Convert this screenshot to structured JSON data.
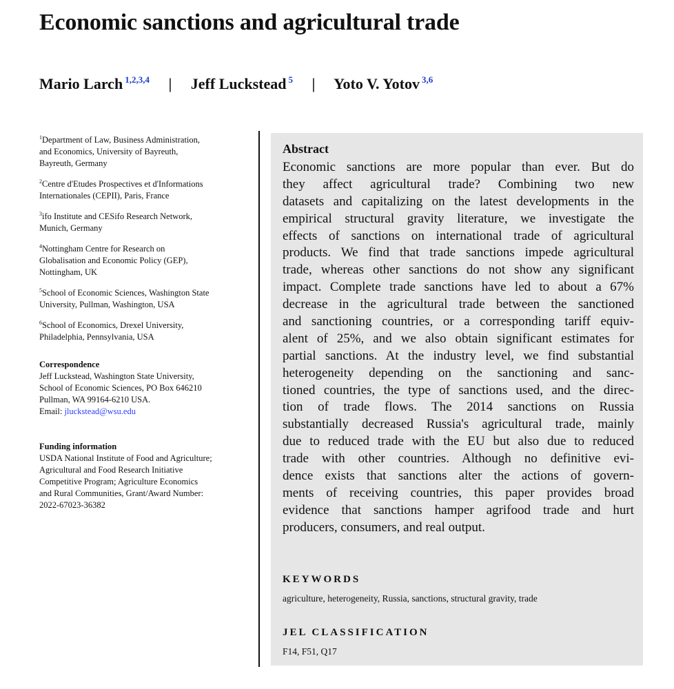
{
  "title": "Economic sanctions and agricultural trade",
  "authors": [
    {
      "name": "Mario Larch",
      "sup": "1,2,3,4"
    },
    {
      "name": "Jeff Luckstead",
      "sup": "5"
    },
    {
      "name": "Yoto V. Yotov",
      "sup": "3,6"
    }
  ],
  "separator": "|",
  "affiliations": [
    {
      "num": "1",
      "lines": [
        "Department of Law, Business Administration,",
        "and Economics, University of Bayreuth,",
        "Bayreuth, Germany"
      ]
    },
    {
      "num": "2",
      "lines": [
        "Centre d'Etudes Prospectives et d'Informations",
        "Internationales (CEPII), Paris, France"
      ]
    },
    {
      "num": "3",
      "lines": [
        "ifo Institute and CESifo Research Network,",
        "Munich, Germany"
      ]
    },
    {
      "num": "4",
      "lines": [
        "Nottingham Centre for Research on",
        "Globalisation and Economic Policy (GEP),",
        "Nottingham, UK"
      ]
    },
    {
      "num": "5",
      "lines": [
        "School of Economic Sciences, Washington State",
        "University, Pullman, Washington, USA"
      ]
    },
    {
      "num": "6",
      "lines": [
        "School of Economics, Drexel University,",
        "Philadelphia, Pennsylvania, USA"
      ]
    }
  ],
  "correspondence": {
    "heading": "Correspondence",
    "lines": [
      "Jeff Luckstead, Washington State University,",
      "School of Economic Sciences, PO Box 646210",
      "Pullman, WA 99164-6210 USA."
    ],
    "email_label": "Email:",
    "email": "jluckstead@wsu.edu"
  },
  "funding": {
    "heading": "Funding information",
    "lines": [
      "USDA National Institute of Food and Agriculture;",
      "Agricultural and Food Research Initiative",
      "Competitive Program; Agriculture Economics",
      "and Rural Communities, Grant/Award Number:",
      "2022-67023-36382"
    ]
  },
  "abstract": {
    "heading": "Abstract",
    "lines": [
      "Economic sanctions are more popular than ever. But do",
      "they affect agricultural trade? Combining two new",
      "datasets and capitalizing on the latest developments in the",
      "empirical structural gravity literature, we investigate the",
      "effects of sanctions on international trade of agricultural",
      "products. We find that trade sanctions impede agricultural",
      "trade, whereas other sanctions do not show any significant",
      "impact. Complete trade sanctions have led to about a 67%",
      "decrease in the agricultural trade between the sanctioned",
      "and sanctioning countries, or a corresponding tariff equiv-",
      "alent of 25%, and we also obtain significant estimates for",
      "partial sanctions. At the industry level, we find substantial",
      "heterogeneity depending on the sanctioning and sanc-",
      "tioned countries, the type of sanctions used, and the direc-",
      "tion of trade flows. The 2014 sanctions on Russia",
      "substantially decreased Russia's agricultural trade, mainly",
      "due to reduced trade with the EU but also due to reduced",
      "trade with other countries. Although no definitive evi-",
      "dence exists that sanctions alter the actions of govern-",
      "ments of receiving countries, this paper provides broad",
      "evidence that sanctions hamper agrifood trade and hurt",
      "producers, consumers, and real output."
    ]
  },
  "keywords": {
    "heading": "KEYWORDS",
    "value": "agriculture, heterogeneity, Russia, sanctions, structural gravity, trade"
  },
  "jel": {
    "heading": "JEL CLASSIFICATION",
    "value": "F14, F51, Q17"
  }
}
